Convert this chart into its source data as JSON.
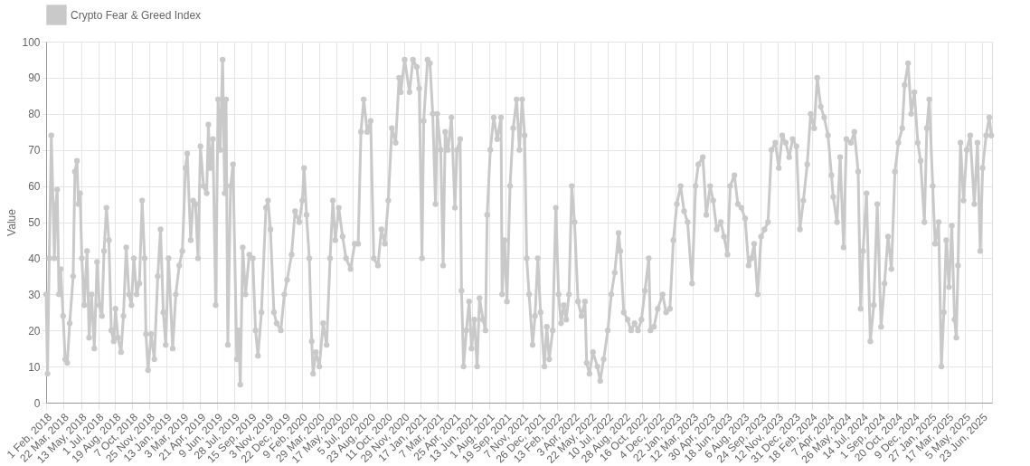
{
  "chart_data": {
    "type": "line",
    "ylabel": "Value",
    "legend": "top",
    "grid": true,
    "marker": "circle",
    "line_style": "solid",
    "ylim": [
      0,
      100
    ],
    "yticks": [
      0,
      10,
      20,
      30,
      40,
      50,
      60,
      70,
      80,
      90,
      100
    ],
    "xlim": [
      "2018-02-01",
      "2025-07-22"
    ],
    "xticks": [
      {
        "value": "2018-02-01",
        "label": "1 Feb, 2018"
      },
      {
        "value": "2018-03-22",
        "label": "22 Mar, 2018"
      },
      {
        "value": "2018-05-13",
        "label": "13 May, 2018"
      },
      {
        "value": "2018-07-01",
        "label": "1 Jul, 2018"
      },
      {
        "value": "2018-08-19",
        "label": "19 Aug, 2018"
      },
      {
        "value": "2018-10-07",
        "label": "7 Oct, 2018"
      },
      {
        "value": "2018-11-25",
        "label": "25 Nov, 2018"
      },
      {
        "value": "2019-01-13",
        "label": "13 Jan, 2019"
      },
      {
        "value": "2019-03-03",
        "label": "3 Mar, 2019"
      },
      {
        "value": "2019-04-21",
        "label": "21 Apr, 2019"
      },
      {
        "value": "2019-06-09",
        "label": "9 Jun, 2019"
      },
      {
        "value": "2019-07-28",
        "label": "28 Jul, 2019"
      },
      {
        "value": "2019-09-15",
        "label": "15 Sep, 2019"
      },
      {
        "value": "2019-11-03",
        "label": "3 Nov, 2019"
      },
      {
        "value": "2019-12-22",
        "label": "22 Dec, 2019"
      },
      {
        "value": "2020-02-09",
        "label": "9 Feb, 2020"
      },
      {
        "value": "2020-03-29",
        "label": "29 Mar, 2020"
      },
      {
        "value": "2020-05-17",
        "label": "17 May, 2020"
      },
      {
        "value": "2020-07-05",
        "label": "5 Jul, 2020"
      },
      {
        "value": "2020-08-23",
        "label": "23 Aug, 2020"
      },
      {
        "value": "2020-10-11",
        "label": "11 Oct, 2020"
      },
      {
        "value": "2020-11-29",
        "label": "29 Nov, 2020"
      },
      {
        "value": "2021-01-17",
        "label": "17 Jan, 2021"
      },
      {
        "value": "2021-03-07",
        "label": "7 Mar, 2021"
      },
      {
        "value": "2021-04-25",
        "label": "25 Apr, 2021"
      },
      {
        "value": "2021-06-13",
        "label": "13 Jun, 2021"
      },
      {
        "value": "2021-08-01",
        "label": "1 Aug, 2021"
      },
      {
        "value": "2021-09-19",
        "label": "19 Sep, 2021"
      },
      {
        "value": "2021-11-07",
        "label": "7 Nov, 2021"
      },
      {
        "value": "2021-12-26",
        "label": "26 Dec, 2021"
      },
      {
        "value": "2022-02-13",
        "label": "13 Feb, 2022"
      },
      {
        "value": "2022-04-03",
        "label": "3 Apr, 2022"
      },
      {
        "value": "2022-05-22",
        "label": "22 May, 2022"
      },
      {
        "value": "2022-07-10",
        "label": "10 Jul, 2022"
      },
      {
        "value": "2022-08-28",
        "label": "28 Aug, 2022"
      },
      {
        "value": "2022-10-16",
        "label": "16 Oct, 2022"
      },
      {
        "value": "2022-12-04",
        "label": "4 Dec, 2022"
      },
      {
        "value": "2023-01-22",
        "label": "22 Jan, 2023"
      },
      {
        "value": "2023-03-12",
        "label": "12 Mar, 2023"
      },
      {
        "value": "2023-04-30",
        "label": "30 Apr, 2023"
      },
      {
        "value": "2023-06-18",
        "label": "18 Jun, 2023"
      },
      {
        "value": "2023-08-06",
        "label": "6 Aug, 2023"
      },
      {
        "value": "2023-09-24",
        "label": "24 Sep, 2023"
      },
      {
        "value": "2023-11-12",
        "label": "12 Nov, 2023"
      },
      {
        "value": "2023-12-31",
        "label": "31 Dec, 2023"
      },
      {
        "value": "2024-02-18",
        "label": "18 Feb, 2024"
      },
      {
        "value": "2024-04-07",
        "label": "7 Apr, 2024"
      },
      {
        "value": "2024-05-26",
        "label": "26 May, 2024"
      },
      {
        "value": "2024-07-14",
        "label": "14 Jul, 2024"
      },
      {
        "value": "2024-09-01",
        "label": "1 Sep, 2024"
      },
      {
        "value": "2024-10-20",
        "label": "20 Oct, 2024"
      },
      {
        "value": "2024-12-09",
        "label": "9 Dec, 2024"
      },
      {
        "value": "2025-01-27",
        "label": "27 Jan, 2025"
      },
      {
        "value": "2025-03-17",
        "label": "17 Mar, 2025"
      },
      {
        "value": "2025-05-05",
        "label": "5 May, 2025"
      },
      {
        "value": "2025-06-23",
        "label": "23 Jun, 2025"
      }
    ],
    "x": [
      "2018-02-01",
      "2018-02-05",
      "2018-02-10",
      "2018-02-16",
      "2018-02-25",
      "2018-03-01",
      "2018-03-05",
      "2018-03-10",
      "2018-03-15",
      "2018-03-22",
      "2018-03-28",
      "2018-04-03",
      "2018-04-10",
      "2018-04-20",
      "2018-04-25",
      "2018-05-01",
      "2018-05-05",
      "2018-05-10",
      "2018-05-15",
      "2018-05-22",
      "2018-05-30",
      "2018-06-05",
      "2018-06-12",
      "2018-06-20",
      "2018-06-28",
      "2018-07-05",
      "2018-07-12",
      "2018-07-18",
      "2018-07-25",
      "2018-08-01",
      "2018-08-08",
      "2018-08-15",
      "2018-08-20",
      "2018-08-27",
      "2018-09-05",
      "2018-09-12",
      "2018-09-20",
      "2018-09-28",
      "2018-10-05",
      "2018-10-12",
      "2018-10-20",
      "2018-10-28",
      "2018-11-05",
      "2018-11-12",
      "2018-11-16",
      "2018-11-22",
      "2018-12-01",
      "2018-12-10",
      "2018-12-20",
      "2018-12-28",
      "2019-01-05",
      "2019-01-12",
      "2019-01-20",
      "2019-02-01",
      "2019-02-10",
      "2019-02-20",
      "2019-03-01",
      "2019-03-10",
      "2019-03-15",
      "2019-03-25",
      "2019-04-01",
      "2019-04-08",
      "2019-04-15",
      "2019-04-22",
      "2019-05-01",
      "2019-05-10",
      "2019-05-15",
      "2019-05-20",
      "2019-05-28",
      "2019-06-05",
      "2019-06-12",
      "2019-06-18",
      "2019-06-25",
      "2019-07-01",
      "2019-07-05",
      "2019-07-10",
      "2019-07-18",
      "2019-07-25",
      "2019-08-05",
      "2019-08-10",
      "2019-08-15",
      "2019-08-22",
      "2019-08-30",
      "2019-09-10",
      "2019-09-20",
      "2019-09-28",
      "2019-10-05",
      "2019-10-15",
      "2019-10-28",
      "2019-11-03",
      "2019-11-10",
      "2019-11-20",
      "2019-11-28",
      "2019-12-10",
      "2019-12-20",
      "2019-12-28",
      "2020-01-10",
      "2020-01-20",
      "2020-02-01",
      "2020-02-10",
      "2020-02-15",
      "2020-02-22",
      "2020-03-01",
      "2020-03-08",
      "2020-03-12",
      "2020-03-20",
      "2020-03-30",
      "2020-04-10",
      "2020-04-20",
      "2020-04-30",
      "2020-05-08",
      "2020-05-15",
      "2020-05-25",
      "2020-06-05",
      "2020-06-15",
      "2020-06-28",
      "2020-07-10",
      "2020-07-20",
      "2020-07-28",
      "2020-08-05",
      "2020-08-15",
      "2020-08-25",
      "2020-09-03",
      "2020-09-15",
      "2020-09-25",
      "2020-10-05",
      "2020-10-15",
      "2020-10-25",
      "2020-11-05",
      "2020-11-15",
      "2020-11-20",
      "2020-12-01",
      "2020-12-15",
      "2020-12-25",
      "2021-01-05",
      "2021-01-12",
      "2021-01-20",
      "2021-01-25",
      "2021-02-05",
      "2021-02-12",
      "2021-02-20",
      "2021-02-28",
      "2021-03-05",
      "2021-03-15",
      "2021-03-22",
      "2021-03-28",
      "2021-04-05",
      "2021-04-15",
      "2021-04-25",
      "2021-05-01",
      "2021-05-10",
      "2021-05-14",
      "2021-05-20",
      "2021-05-28",
      "2021-06-05",
      "2021-06-12",
      "2021-06-20",
      "2021-06-28",
      "2021-07-05",
      "2021-07-15",
      "2021-07-22",
      "2021-07-27",
      "2021-08-05",
      "2021-08-15",
      "2021-08-25",
      "2021-09-05",
      "2021-09-08",
      "2021-09-15",
      "2021-09-22",
      "2021-10-01",
      "2021-10-10",
      "2021-10-20",
      "2021-10-28",
      "2021-11-05",
      "2021-11-12",
      "2021-11-18",
      "2021-11-25",
      "2021-12-05",
      "2021-12-12",
      "2021-12-20",
      "2021-12-28",
      "2022-01-08",
      "2022-01-15",
      "2022-01-22",
      "2022-02-01",
      "2022-02-10",
      "2022-02-18",
      "2022-02-25",
      "2022-03-05",
      "2022-03-12",
      "2022-03-20",
      "2022-03-28",
      "2022-04-05",
      "2022-04-15",
      "2022-04-25",
      "2022-05-05",
      "2022-05-10",
      "2022-05-18",
      "2022-05-28",
      "2022-06-10",
      "2022-06-18",
      "2022-06-28",
      "2022-07-10",
      "2022-07-20",
      "2022-07-30",
      "2022-08-10",
      "2022-08-15",
      "2022-08-25",
      "2022-09-05",
      "2022-09-15",
      "2022-09-25",
      "2022-10-05",
      "2022-10-15",
      "2022-10-25",
      "2022-11-05",
      "2022-11-10",
      "2022-11-20",
      "2022-12-01",
      "2022-12-15",
      "2022-12-25",
      "2023-01-05",
      "2023-01-15",
      "2023-01-25",
      "2023-02-05",
      "2023-02-15",
      "2023-02-25",
      "2023-03-10",
      "2023-03-20",
      "2023-03-28",
      "2023-04-10",
      "2023-04-20",
      "2023-05-01",
      "2023-05-10",
      "2023-05-20",
      "2023-06-01",
      "2023-06-10",
      "2023-06-20",
      "2023-06-28",
      "2023-07-10",
      "2023-07-20",
      "2023-07-30",
      "2023-08-10",
      "2023-08-20",
      "2023-08-28",
      "2023-09-05",
      "2023-09-15",
      "2023-09-25",
      "2023-10-05",
      "2023-10-15",
      "2023-10-25",
      "2023-11-05",
      "2023-11-15",
      "2023-11-25",
      "2023-12-05",
      "2023-12-15",
      "2023-12-25",
      "2024-01-05",
      "2024-01-15",
      "2024-01-25",
      "2024-02-05",
      "2024-02-15",
      "2024-02-25",
      "2024-03-05",
      "2024-03-15",
      "2024-03-25",
      "2024-04-05",
      "2024-04-15",
      "2024-04-20",
      "2024-05-01",
      "2024-05-10",
      "2024-05-20",
      "2024-05-28",
      "2024-06-10",
      "2024-06-20",
      "2024-07-01",
      "2024-07-08",
      "2024-07-15",
      "2024-07-25",
      "2024-08-05",
      "2024-08-15",
      "2024-08-25",
      "2024-09-05",
      "2024-09-15",
      "2024-09-25",
      "2024-10-05",
      "2024-10-15",
      "2024-10-25",
      "2024-11-05",
      "2024-11-12",
      "2024-11-22",
      "2024-12-01",
      "2024-12-10",
      "2024-12-20",
      "2024-12-28",
      "2025-01-08",
      "2025-01-15",
      "2025-01-22",
      "2025-02-01",
      "2025-02-08",
      "2025-02-18",
      "2025-02-26",
      "2025-03-05",
      "2025-03-12",
      "2025-03-20",
      "2025-03-28",
      "2025-04-05",
      "2025-04-10",
      "2025-04-15",
      "2025-04-22",
      "2025-05-01",
      "2025-05-10",
      "2025-05-20",
      "2025-06-01",
      "2025-06-10",
      "2025-06-18",
      "2025-06-25",
      "2025-07-05",
      "2025-07-14",
      "2025-07-20"
    ],
    "series": [
      {
        "name": "Crypto Fear & Greed Index",
        "color": "#c9c9c9",
        "values": [
          30,
          8,
          40,
          74,
          40,
          55,
          59,
          30,
          37,
          24,
          12,
          11,
          22,
          35,
          64,
          67,
          55,
          58,
          40,
          27,
          42,
          18,
          30,
          15,
          39,
          27,
          24,
          42,
          54,
          45,
          20,
          17,
          26,
          18,
          14,
          24,
          43,
          30,
          27,
          40,
          30,
          33,
          56,
          40,
          19,
          9,
          19,
          12,
          35,
          48,
          25,
          16,
          40,
          15,
          30,
          38,
          42,
          65,
          69,
          45,
          56,
          55,
          40,
          71,
          60,
          58,
          77,
          65,
          73,
          27,
          84,
          70,
          95,
          58,
          84,
          16,
          60,
          66,
          12,
          20,
          5,
          43,
          30,
          41,
          40,
          20,
          13,
          25,
          54,
          56,
          48,
          25,
          22,
          20,
          30,
          34,
          41,
          53,
          50,
          56,
          65,
          52,
          40,
          17,
          8,
          14,
          10,
          22,
          16,
          40,
          56,
          45,
          54,
          46,
          40,
          37,
          44,
          44,
          75,
          84,
          75,
          78,
          40,
          38,
          48,
          44,
          56,
          76,
          72,
          90,
          86,
          95,
          86,
          95,
          93,
          87,
          40,
          78,
          95,
          94,
          80,
          55,
          80,
          70,
          38,
          75,
          70,
          79,
          54,
          70,
          73,
          31,
          10,
          20,
          28,
          15,
          23,
          10,
          29,
          23,
          20,
          52,
          70,
          79,
          73,
          79,
          30,
          45,
          28,
          60,
          76,
          84,
          70,
          84,
          74,
          40,
          30,
          16,
          24,
          40,
          25,
          10,
          21,
          12,
          20,
          54,
          30,
          22,
          27,
          23,
          30,
          60,
          50,
          28,
          24,
          28,
          11,
          8,
          14,
          10,
          6,
          12,
          20,
          30,
          36,
          47,
          42,
          25,
          23,
          20,
          22,
          20,
          23,
          31,
          40,
          20,
          21,
          26,
          30,
          25,
          26,
          45,
          55,
          60,
          53,
          50,
          33,
          60,
          66,
          68,
          52,
          60,
          56,
          48,
          50,
          46,
          41,
          60,
          63,
          55,
          54,
          51,
          38,
          40,
          44,
          30,
          46,
          48,
          50,
          70,
          72,
          65,
          74,
          72,
          68,
          73,
          71,
          48,
          56,
          66,
          80,
          76,
          90,
          82,
          79,
          74,
          63,
          57,
          50,
          68,
          43,
          73,
          72,
          75,
          64,
          26,
          42,
          58,
          17,
          27,
          55,
          21,
          33,
          46,
          37,
          64,
          72,
          76,
          88,
          94,
          80,
          86,
          72,
          67,
          50,
          76,
          84,
          60,
          44,
          50,
          10,
          25,
          45,
          32,
          49,
          23,
          18,
          38,
          72,
          56,
          70,
          74,
          55,
          72,
          42,
          65,
          74,
          79,
          74
        ]
      }
    ]
  }
}
